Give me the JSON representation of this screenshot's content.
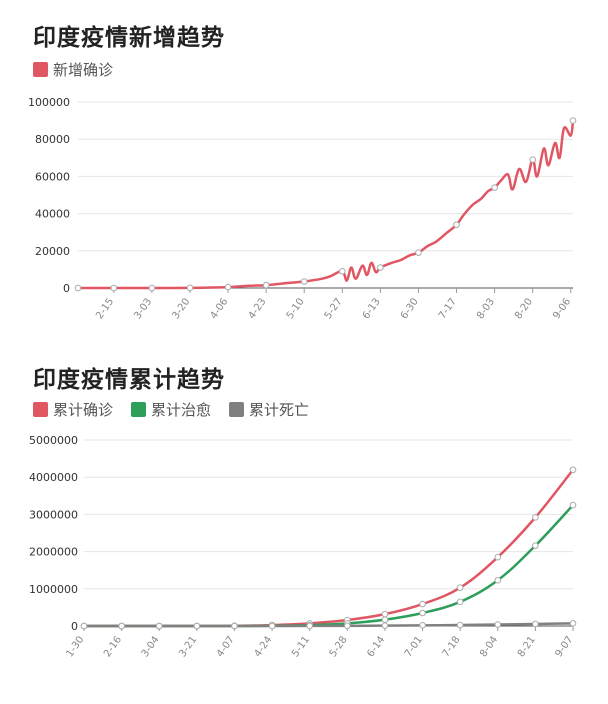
{
  "chart_data": [
    {
      "type": "line",
      "title": "印度疫情新增趋势",
      "legend_position": "top-left",
      "ylim": [
        0,
        100000
      ],
      "yticks": [
        0,
        20000,
        40000,
        60000,
        80000,
        100000
      ],
      "xticks": [
        "2-15",
        "3-03",
        "3-20",
        "4-06",
        "4-23",
        "5-10",
        "5-27",
        "6-13",
        "6-30",
        "7-17",
        "8-03",
        "8-20",
        "9-06"
      ],
      "grid": true,
      "series": [
        {
          "name": "新增确诊",
          "color": "#e05663",
          "x": [
            "1-30",
            "2-15",
            "3-03",
            "3-20",
            "4-06",
            "4-15",
            "4-23",
            "5-01",
            "5-10",
            "5-18",
            "5-22",
            "5-27",
            "5-29",
            "5-31",
            "6-02",
            "6-05",
            "6-07",
            "6-09",
            "6-11",
            "6-13",
            "6-18",
            "6-22",
            "6-26",
            "6-30",
            "7-04",
            "7-08",
            "7-13",
            "7-17",
            "7-20",
            "7-24",
            "7-28",
            "7-31",
            "8-03",
            "8-06",
            "8-09",
            "8-11",
            "8-14",
            "8-17",
            "8-20",
            "8-22",
            "8-25",
            "8-27",
            "8-30",
            "9-01",
            "9-03",
            "9-06",
            "9-07"
          ],
          "values": [
            0,
            0,
            0,
            100,
            500,
            1200,
            1500,
            2500,
            3500,
            5000,
            6500,
            9000,
            4000,
            11000,
            5000,
            12000,
            7000,
            13500,
            8500,
            11000,
            13500,
            15000,
            17500,
            19000,
            22500,
            25000,
            30000,
            34000,
            39000,
            44500,
            48000,
            52000,
            54000,
            58000,
            61000,
            53000,
            64000,
            57000,
            69000,
            60000,
            75000,
            66000,
            78000,
            70000,
            86000,
            82000,
            90000
          ]
        }
      ]
    },
    {
      "type": "line",
      "title": "印度疫情累计趋势",
      "legend_position": "top-left",
      "ylim": [
        0,
        5000000
      ],
      "yticks": [
        0,
        1000000,
        2000000,
        3000000,
        4000000,
        5000000
      ],
      "xticks": [
        "1-30",
        "2-16",
        "3-04",
        "3-21",
        "4-07",
        "4-24",
        "5-11",
        "5-28",
        "6-14",
        "7-01",
        "7-18",
        "8-04",
        "8-21",
        "9-07"
      ],
      "grid": true,
      "series": [
        {
          "name": "累计确诊",
          "color": "#e05663",
          "values": [
            1,
            3,
            30,
            300,
            5000,
            25000,
            70000,
            160000,
            320000,
            590000,
            1030000,
            1850000,
            2920000,
            4200000
          ]
        },
        {
          "name": "累计治愈",
          "color": "#2e9e5b",
          "values": [
            0,
            0,
            3,
            20,
            400,
            5000,
            22000,
            70000,
            170000,
            350000,
            650000,
            1230000,
            2160000,
            3250000
          ]
        },
        {
          "name": "累计死亡",
          "color": "#808080",
          "values": [
            0,
            0,
            0,
            5,
            150,
            800,
            2300,
            4500,
            9500,
            17500,
            26000,
            39000,
            55000,
            72000
          ]
        }
      ]
    }
  ]
}
